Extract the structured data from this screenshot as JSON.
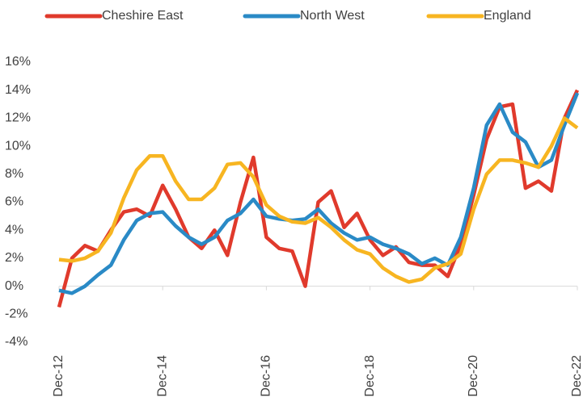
{
  "chart_data": {
    "type": "line",
    "categories": [
      "Dec-12",
      null,
      null,
      null,
      null,
      null,
      null,
      null,
      "Dec-14",
      null,
      null,
      null,
      null,
      null,
      null,
      null,
      "Dec-16",
      null,
      null,
      null,
      null,
      null,
      null,
      null,
      "Dec-18",
      null,
      null,
      null,
      null,
      null,
      null,
      null,
      "Dec-20",
      null,
      null,
      null,
      null,
      null,
      null,
      null,
      "Dec-22"
    ],
    "series": [
      {
        "name": "Cheshire East",
        "color": "#e03a2c",
        "values": [
          -1.5,
          2.0,
          2.9,
          2.5,
          4.0,
          5.3,
          5.5,
          5.0,
          7.2,
          5.5,
          3.5,
          2.7,
          4.0,
          2.2,
          6.0,
          9.2,
          3.5,
          2.7,
          2.5,
          0.0,
          6.0,
          6.8,
          4.2,
          5.2,
          3.3,
          2.2,
          2.8,
          1.7,
          1.5,
          1.5,
          0.7,
          3.0,
          6.5,
          10.5,
          12.8,
          13.0,
          7.0,
          7.5,
          6.8,
          12.0,
          14.0
        ]
      },
      {
        "name": "North West",
        "color": "#2a8ac6",
        "values": [
          -0.3,
          -0.5,
          0.0,
          0.8,
          1.5,
          3.3,
          4.7,
          5.2,
          5.3,
          4.3,
          3.5,
          3.0,
          3.5,
          4.7,
          5.2,
          6.2,
          5.0,
          4.8,
          4.7,
          4.8,
          5.5,
          4.5,
          3.8,
          3.3,
          3.5,
          3.0,
          2.7,
          2.3,
          1.6,
          2.0,
          1.5,
          3.5,
          7.0,
          11.5,
          13.0,
          11.0,
          10.3,
          8.5,
          9.0,
          11.5,
          13.8
        ]
      },
      {
        "name": "England",
        "color": "#f7b521",
        "values": [
          1.9,
          1.8,
          2.0,
          2.5,
          3.8,
          6.3,
          8.3,
          9.3,
          9.3,
          7.5,
          6.2,
          6.2,
          7.0,
          8.7,
          8.8,
          7.8,
          5.8,
          5.0,
          4.6,
          4.5,
          4.9,
          4.2,
          3.3,
          2.6,
          2.3,
          1.3,
          0.7,
          0.3,
          0.5,
          1.3,
          1.6,
          2.3,
          5.5,
          8.0,
          9.0,
          9.0,
          8.8,
          8.5,
          10.0,
          12.0,
          11.3
        ]
      }
    ],
    "ylim": [
      -4,
      16
    ],
    "yticks": [
      {
        "value": -4,
        "label": "-4%"
      },
      {
        "value": -2,
        "label": "-2%"
      },
      {
        "value": 0,
        "label": "0%"
      },
      {
        "value": 2,
        "label": "2%"
      },
      {
        "value": 4,
        "label": "4%"
      },
      {
        "value": 6,
        "label": "6%"
      },
      {
        "value": 8,
        "label": "8%"
      },
      {
        "value": 10,
        "label": "10%"
      },
      {
        "value": 12,
        "label": "12%"
      },
      {
        "value": 14,
        "label": "14%"
      },
      {
        "value": 16,
        "label": "16%"
      }
    ],
    "legend": "top",
    "grid": false
  }
}
